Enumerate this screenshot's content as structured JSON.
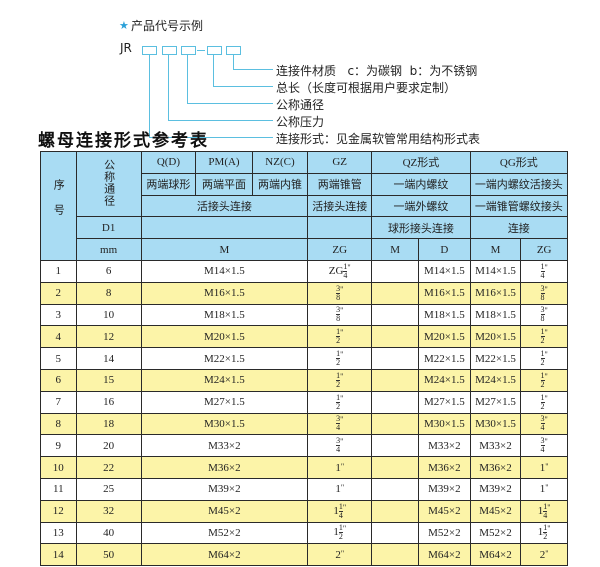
{
  "legend": {
    "star_icon": "star-icon",
    "heading": "产品代号示例",
    "code_prefix": "JR",
    "labels": [
      "连接件材质   c：为碳钢  b：为不锈钢",
      "总长（长度可根据用户要求定制）",
      "公称通径",
      "公称压力",
      "连接形式：见金属软管常用结构形式表"
    ]
  },
  "title": "螺母连接形式参考表",
  "colors": {
    "header": "#a9dcf3",
    "alt_row": "#fcf4a8",
    "diagram_line": "#5bbfe0"
  },
  "header": {
    "seq": "序号",
    "dn": "公称通径",
    "d1": "D1",
    "mm": "mm",
    "q": "Q(D)",
    "pm": "PM(A)",
    "nz": "NZ(C)",
    "gz": "GZ",
    "qz": "QZ形式",
    "qg": "QG形式",
    "q_desc": "两端球形",
    "pm_desc": "两端平面",
    "nz_desc": "两端内锥",
    "gz_desc": "两端锥管",
    "qz_desc1": "一端内螺纹",
    "qg_desc1": "一端内螺纹活接头",
    "live_joint": "活接头连接",
    "gz_desc2": "活接头连接",
    "qz_desc2": "一端外螺纹",
    "qg_desc2": "一端锥管螺纹接头",
    "qz_desc3": "球形接头连接",
    "qg_desc3": "连接",
    "m": "M",
    "zg": "ZG",
    "qz_m": "M",
    "qz_d": "D",
    "qg_m": "M",
    "qg_zg": "ZG"
  },
  "rows": [
    {
      "no": "1",
      "dn": "6",
      "m": "M14×1.5",
      "zg_pre": "ZG",
      "zg_w": "",
      "zg_n": "1",
      "zg_d": "4",
      "qz_d": "M14×1.5",
      "qg_m": "M14×1.5"
    },
    {
      "no": "2",
      "dn": "8",
      "m": "M16×1.5",
      "zg_pre": "",
      "zg_w": "",
      "zg_n": "3",
      "zg_d": "8",
      "qz_d": "M16×1.5",
      "qg_m": "M16×1.5"
    },
    {
      "no": "3",
      "dn": "10",
      "m": "M18×1.5",
      "zg_pre": "",
      "zg_w": "",
      "zg_n": "3",
      "zg_d": "8",
      "qz_d": "M18×1.5",
      "qg_m": "M18×1.5"
    },
    {
      "no": "4",
      "dn": "12",
      "m": "M20×1.5",
      "zg_pre": "",
      "zg_w": "",
      "zg_n": "1",
      "zg_d": "2",
      "qz_d": "M20×1.5",
      "qg_m": "M20×1.5"
    },
    {
      "no": "5",
      "dn": "14",
      "m": "M22×1.5",
      "zg_pre": "",
      "zg_w": "",
      "zg_n": "1",
      "zg_d": "2",
      "qz_d": "M22×1.5",
      "qg_m": "M22×1.5"
    },
    {
      "no": "6",
      "dn": "15",
      "m": "M24×1.5",
      "zg_pre": "",
      "zg_w": "",
      "zg_n": "1",
      "zg_d": "2",
      "qz_d": "M24×1.5",
      "qg_m": "M24×1.5"
    },
    {
      "no": "7",
      "dn": "16",
      "m": "M27×1.5",
      "zg_pre": "",
      "zg_w": "",
      "zg_n": "1",
      "zg_d": "2",
      "qz_d": "M27×1.5",
      "qg_m": "M27×1.5"
    },
    {
      "no": "8",
      "dn": "18",
      "m": "M30×1.5",
      "zg_pre": "",
      "zg_w": "",
      "zg_n": "3",
      "zg_d": "4",
      "qz_d": "M30×1.5",
      "qg_m": "M30×1.5"
    },
    {
      "no": "9",
      "dn": "20",
      "m": "M33×2",
      "zg_pre": "",
      "zg_w": "",
      "zg_n": "3",
      "zg_d": "4",
      "qz_d": "M33×2",
      "qg_m": "M33×2"
    },
    {
      "no": "10",
      "dn": "22",
      "m": "M36×2",
      "zg_pre": "",
      "zg_w": "1",
      "zg_n": "",
      "zg_d": "",
      "qz_d": "M36×2",
      "qg_m": "M36×2"
    },
    {
      "no": "11",
      "dn": "25",
      "m": "M39×2",
      "zg_pre": "",
      "zg_w": "1",
      "zg_n": "",
      "zg_d": "",
      "qz_d": "M39×2",
      "qg_m": "M39×2"
    },
    {
      "no": "12",
      "dn": "32",
      "m": "M45×2",
      "zg_pre": "",
      "zg_w": "1",
      "zg_n": "1",
      "zg_d": "4",
      "qz_d": "M45×2",
      "qg_m": "M45×2"
    },
    {
      "no": "13",
      "dn": "40",
      "m": "M52×2",
      "zg_pre": "",
      "zg_w": "1",
      "zg_n": "1",
      "zg_d": "2",
      "qz_d": "M52×2",
      "qg_m": "M52×2"
    },
    {
      "no": "14",
      "dn": "50",
      "m": "M64×2",
      "zg_pre": "",
      "zg_w": "2",
      "zg_n": "",
      "zg_d": "",
      "qz_d": "M64×2",
      "qg_m": "M64×2"
    }
  ]
}
